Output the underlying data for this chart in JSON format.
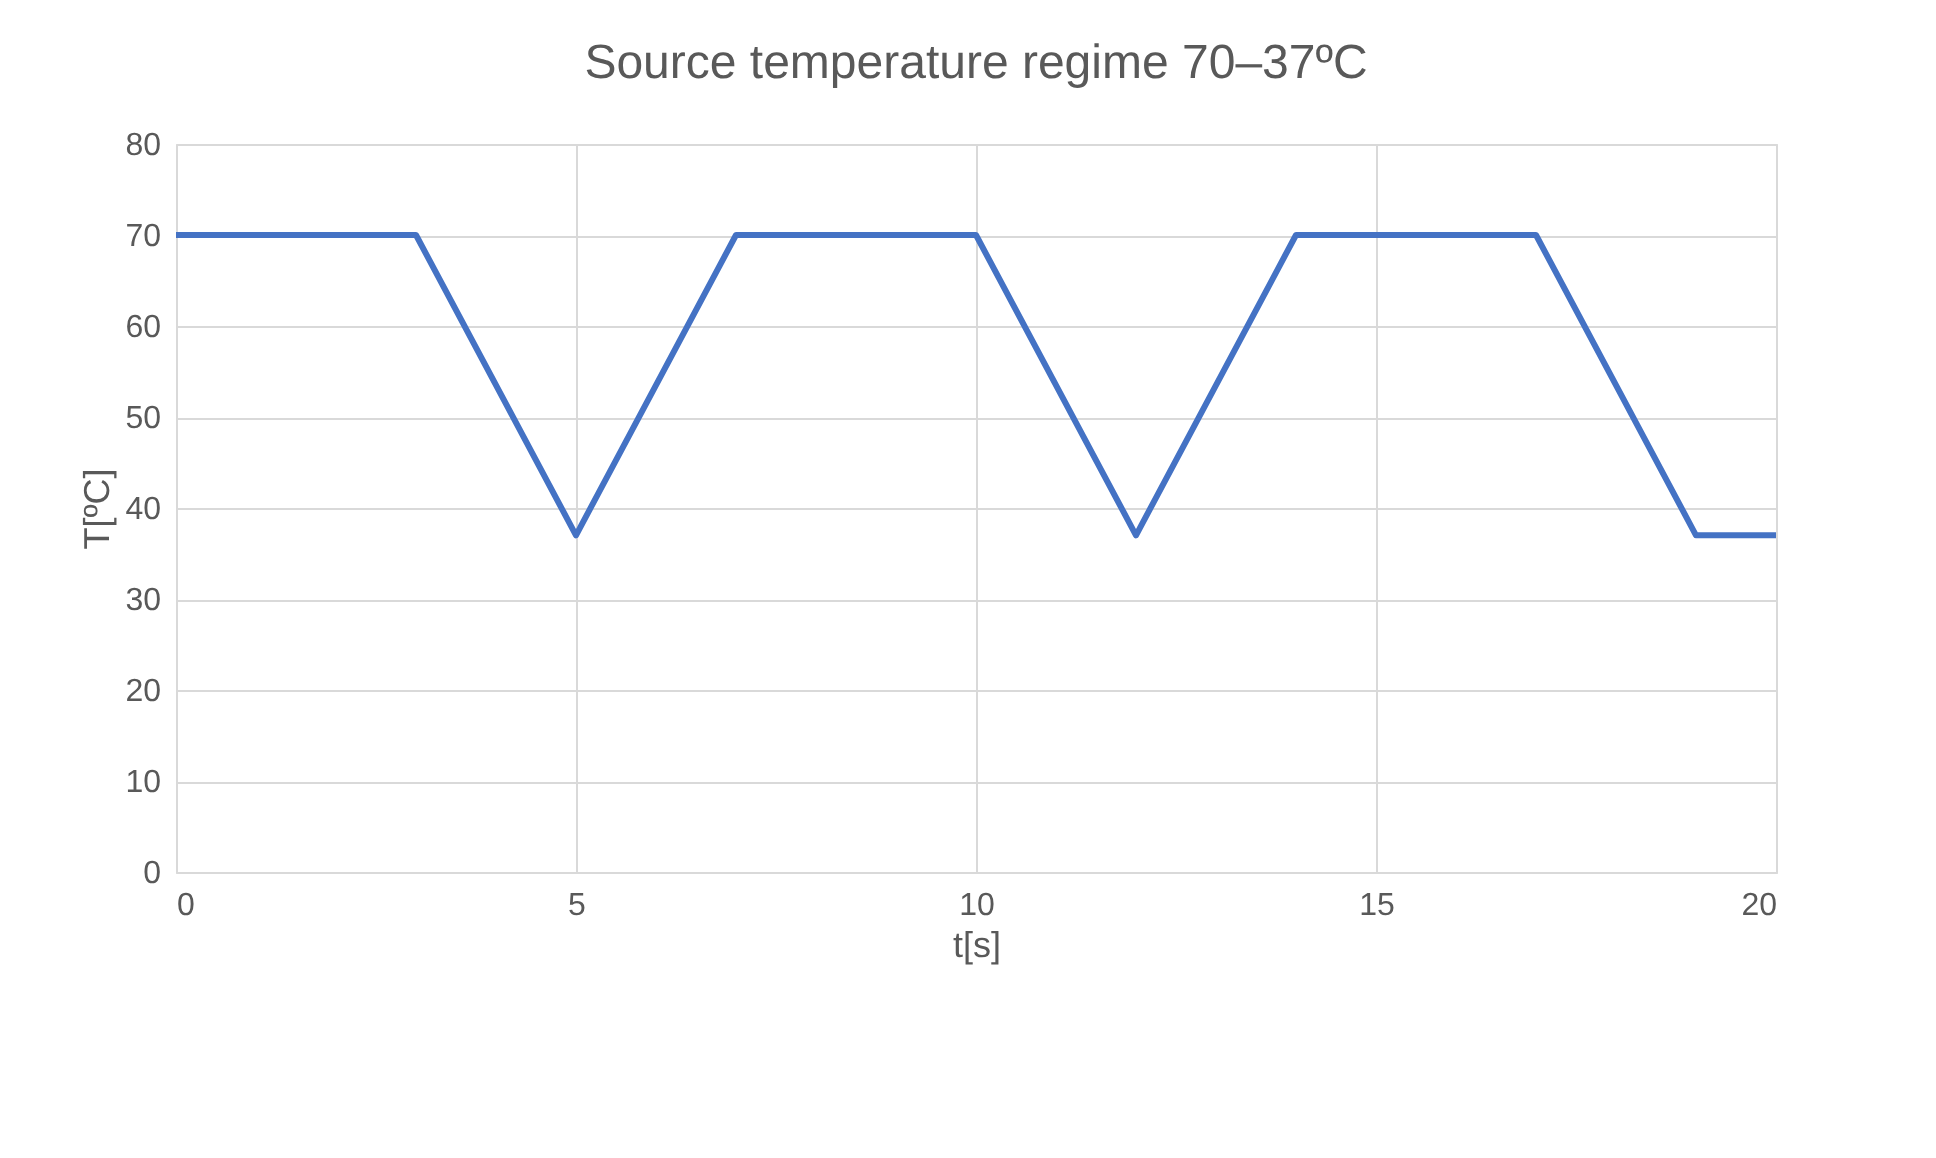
{
  "chart_data": {
    "type": "line",
    "title": "Source temperature regime 70–37ºC",
    "xlabel": "t[s]",
    "ylabel": "T[ºC]",
    "x": [
      0,
      3,
      5,
      7,
      10,
      12,
      14,
      17,
      19,
      20
    ],
    "series": [
      {
        "color": "#4472c4",
        "values": [
          70,
          70,
          37,
          70,
          70,
          37,
          70,
          70,
          37,
          37
        ]
      }
    ],
    "xlim": [
      0,
      20
    ],
    "xticks": [
      0,
      5,
      10,
      15,
      20
    ],
    "ylim": [
      0,
      80
    ],
    "yticks": [
      0,
      10,
      20,
      30,
      40,
      50,
      60,
      70,
      80
    ],
    "grid": true,
    "marker": "none",
    "line_style": "solid"
  }
}
